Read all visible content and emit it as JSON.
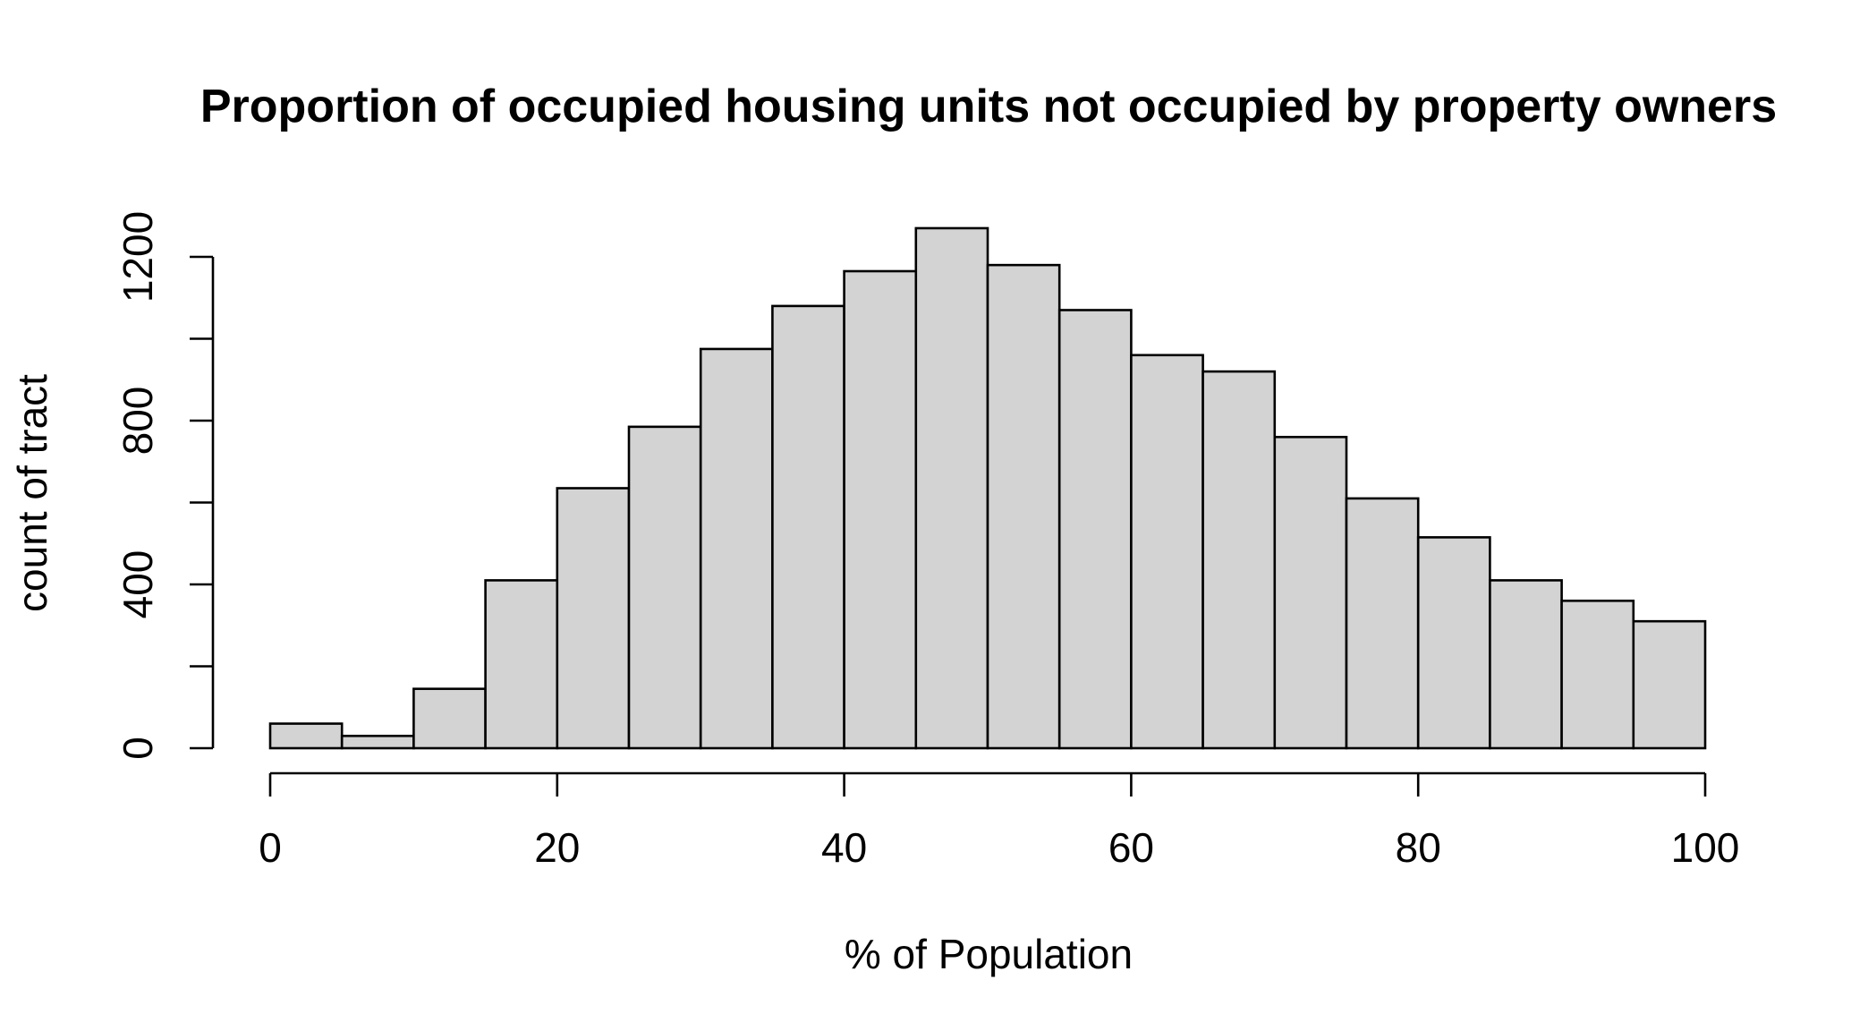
{
  "chart_data": {
    "type": "bar",
    "title": "Proportion of occupied housing units not occupied by property owners",
    "xlabel": "% of Population",
    "ylabel": "count of tract",
    "bin_width": 5,
    "bins": [
      {
        "x0": 0,
        "x1": 5,
        "count": 60
      },
      {
        "x0": 5,
        "x1": 10,
        "count": 30
      },
      {
        "x0": 10,
        "x1": 15,
        "count": 145
      },
      {
        "x0": 15,
        "x1": 20,
        "count": 410
      },
      {
        "x0": 20,
        "x1": 25,
        "count": 635
      },
      {
        "x0": 25,
        "x1": 30,
        "count": 785
      },
      {
        "x0": 30,
        "x1": 35,
        "count": 975
      },
      {
        "x0": 35,
        "x1": 40,
        "count": 1080
      },
      {
        "x0": 40,
        "x1": 45,
        "count": 1165
      },
      {
        "x0": 45,
        "x1": 50,
        "count": 1270
      },
      {
        "x0": 50,
        "x1": 55,
        "count": 1180
      },
      {
        "x0": 55,
        "x1": 60,
        "count": 1070
      },
      {
        "x0": 60,
        "x1": 65,
        "count": 960
      },
      {
        "x0": 65,
        "x1": 70,
        "count": 920
      },
      {
        "x0": 70,
        "x1": 75,
        "count": 760
      },
      {
        "x0": 75,
        "x1": 80,
        "count": 610
      },
      {
        "x0": 80,
        "x1": 85,
        "count": 515
      },
      {
        "x0": 85,
        "x1": 90,
        "count": 410
      },
      {
        "x0": 90,
        "x1": 95,
        "count": 360
      },
      {
        "x0": 95,
        "x1": 100,
        "count": 310
      }
    ],
    "xlim": [
      0,
      100
    ],
    "ylim": [
      0,
      1200
    ],
    "x_ticks": [
      0,
      20,
      40,
      60,
      80,
      100
    ],
    "x_tick_labels": [
      "0",
      "20",
      "40",
      "60",
      "80",
      "100"
    ],
    "y_ticks": [
      0,
      200,
      400,
      600,
      800,
      1000,
      1200
    ],
    "y_tick_labels": [
      "0",
      "",
      "400",
      "",
      "800",
      "",
      "1200"
    ],
    "bar_fill": "#d3d3d3",
    "bar_stroke": "#000000",
    "grid": false,
    "legend": "none"
  }
}
